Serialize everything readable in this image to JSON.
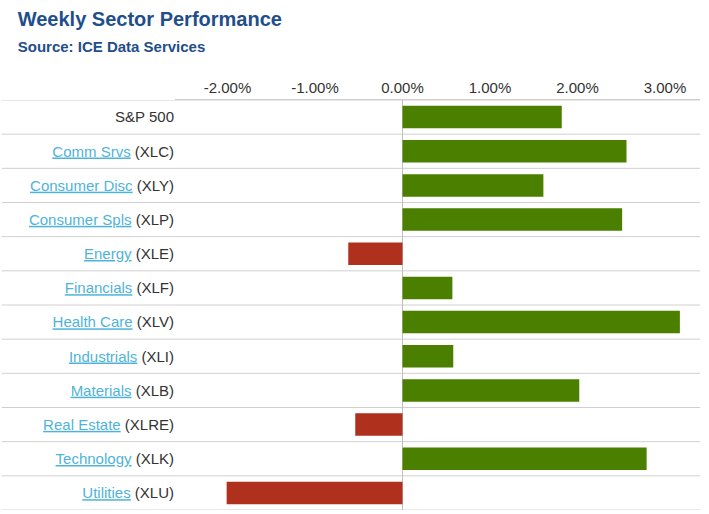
{
  "chart_data": {
    "type": "bar",
    "orientation": "horizontal",
    "title": "Weekly Sector Performance",
    "subtitle": "Source: ICE Data Services",
    "categories": [
      "S&P 500",
      "Comm Srvs (XLC)",
      "Consumer Disc (XLY)",
      "Consumer Spls (XLP)",
      "Energy (XLE)",
      "Financials (XLF)",
      "Health Care (XLV)",
      "Industrials (XLI)",
      "Materials (XLB)",
      "Real Estate (XLRE)",
      "Technology (XLK)",
      "Utilities (XLU)"
    ],
    "values": [
      1.82,
      2.56,
      1.61,
      2.51,
      -0.62,
      0.57,
      3.17,
      0.58,
      2.02,
      -0.54,
      2.79,
      -2.01
    ],
    "colors": [
      "#4a7f00",
      "#4a7f00",
      "#4a7f00",
      "#4a7f00",
      "#b0301e",
      "#4a7f00",
      "#4a7f00",
      "#4a7f00",
      "#4a7f00",
      "#b0301e",
      "#4a7f00",
      "#b0301e"
    ],
    "xlim": [
      -2.6,
      3.4
    ],
    "xticks": [
      {
        "value": -2,
        "label": "-2.00%"
      },
      {
        "value": -1,
        "label": "-1.00%"
      },
      {
        "value": 0,
        "label": "0.00%"
      },
      {
        "value": 1,
        "label": "1.00%"
      },
      {
        "value": 2,
        "label": "2.00%"
      },
      {
        "value": 3,
        "label": "3.00%"
      }
    ],
    "grid": false
  }
}
